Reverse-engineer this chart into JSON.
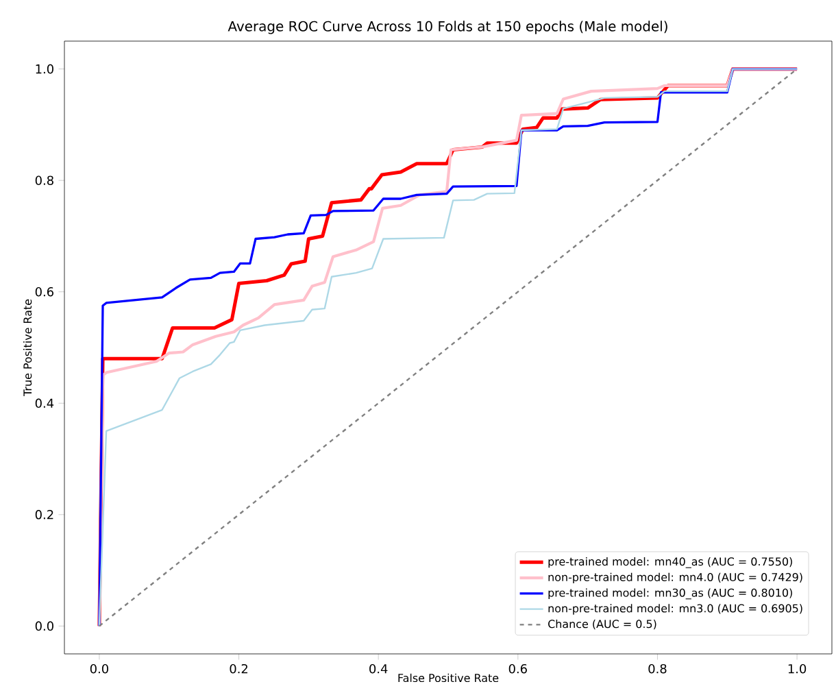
{
  "chart_data": {
    "type": "line",
    "title": "Average ROC Curve Across 10 Folds at 150 epochs (Male model)",
    "xlabel": "False Positive Rate",
    "ylabel": "True Positive Rate",
    "xlim": [
      -0.05,
      1.05
    ],
    "ylim": [
      -0.05,
      1.05
    ],
    "xticks": [
      {
        "value": 0,
        "label": "0.0"
      },
      0.2,
      0.4,
      0.6,
      0.8,
      {
        "value": 1,
        "label": "1.0"
      }
    ],
    "yticks": [
      {
        "value": 0,
        "label": "0.0"
      },
      0.2,
      0.4,
      0.6,
      0.8,
      {
        "value": 1,
        "label": "1.0"
      }
    ],
    "legend": "bottom right",
    "grid": false,
    "series": [
      {
        "name": "pre-trained model: mn40_as (AUC = 0.7550)",
        "color": "#ff0000",
        "x": [
          0,
          0.005,
          0.01,
          0.09,
          0.105,
          0.165,
          0.19,
          0.2,
          0.24,
          0.265,
          0.275,
          0.295,
          0.3,
          0.32,
          0.333,
          0.375,
          0.387,
          0.39,
          0.405,
          0.432,
          0.455,
          0.498,
          0.507,
          0.549,
          0.556,
          0.598,
          0.607,
          0.627,
          0.636,
          0.656,
          0.663,
          0.7,
          0.718,
          0.8,
          0.815,
          0.9,
          0.908,
          1
        ],
        "values": [
          0,
          0.48,
          0.48,
          0.48,
          0.535,
          0.535,
          0.55,
          0.615,
          0.62,
          0.63,
          0.65,
          0.655,
          0.695,
          0.7,
          0.76,
          0.765,
          0.785,
          0.785,
          0.81,
          0.815,
          0.83,
          0.83,
          0.855,
          0.86,
          0.867,
          0.867,
          0.892,
          0.895,
          0.912,
          0.912,
          0.928,
          0.93,
          0.945,
          0.948,
          0.97,
          0.97,
          1,
          1
        ]
      },
      {
        "name": "non-pre-trained model: mn4.0 (AUC = 0.7429)",
        "color": "#ffc0cb",
        "x": [
          0,
          0.005,
          0.01,
          0.082,
          0.1,
          0.12,
          0.134,
          0.167,
          0.193,
          0.206,
          0.228,
          0.251,
          0.293,
          0.305,
          0.323,
          0.335,
          0.368,
          0.393,
          0.406,
          0.432,
          0.459,
          0.498,
          0.504,
          0.549,
          0.598,
          0.605,
          0.656,
          0.665,
          0.705,
          0.8,
          0.81,
          0.9,
          0.908,
          1
        ],
        "values": [
          0,
          0.45,
          0.455,
          0.475,
          0.49,
          0.492,
          0.505,
          0.52,
          0.528,
          0.54,
          0.553,
          0.577,
          0.585,
          0.61,
          0.617,
          0.663,
          0.675,
          0.69,
          0.75,
          0.755,
          0.774,
          0.78,
          0.855,
          0.86,
          0.872,
          0.917,
          0.92,
          0.946,
          0.96,
          0.965,
          0.97,
          0.97,
          1,
          1
        ]
      },
      {
        "name": "pre-trained model: mn30_as (AUC = 0.8010)",
        "color": "#0000ff",
        "x": [
          0,
          0.005,
          0.01,
          0.09,
          0.11,
          0.13,
          0.16,
          0.173,
          0.193,
          0.202,
          0.216,
          0.224,
          0.251,
          0.27,
          0.293,
          0.303,
          0.325,
          0.335,
          0.393,
          0.407,
          0.432,
          0.455,
          0.498,
          0.507,
          0.598,
          0.605,
          0.656,
          0.665,
          0.7,
          0.724,
          0.8,
          0.805,
          0.9,
          0.908,
          1
        ],
        "values": [
          0,
          0.575,
          0.58,
          0.59,
          0.607,
          0.622,
          0.625,
          0.634,
          0.636,
          0.651,
          0.651,
          0.695,
          0.698,
          0.703,
          0.705,
          0.737,
          0.738,
          0.745,
          0.746,
          0.767,
          0.767,
          0.774,
          0.776,
          0.789,
          0.79,
          0.89,
          0.89,
          0.897,
          0.898,
          0.904,
          0.905,
          0.958,
          0.958,
          1,
          1
        ]
      },
      {
        "name": "non-pre-trained model: mn3.0 (AUC = 0.6905)",
        "color": "#add8e6",
        "x": [
          0,
          0.01,
          0.09,
          0.115,
          0.134,
          0.16,
          0.173,
          0.187,
          0.193,
          0.202,
          0.237,
          0.293,
          0.305,
          0.323,
          0.333,
          0.368,
          0.391,
          0.407,
          0.494,
          0.507,
          0.537,
          0.556,
          0.595,
          0.605,
          0.656,
          0.665,
          0.7,
          0.724,
          0.8,
          0.81,
          0.9,
          0.908,
          1
        ],
        "values": [
          0,
          0.35,
          0.388,
          0.445,
          0.457,
          0.47,
          0.487,
          0.508,
          0.51,
          0.531,
          0.54,
          0.548,
          0.568,
          0.57,
          0.627,
          0.634,
          0.642,
          0.695,
          0.697,
          0.764,
          0.765,
          0.776,
          0.777,
          0.89,
          0.892,
          0.929,
          0.94,
          0.948,
          0.95,
          0.96,
          0.96,
          1,
          1
        ]
      },
      {
        "name": "Chance (AUC = 0.5)",
        "color": "#808080",
        "line_style": "dashed",
        "x": [
          0,
          1
        ],
        "values": [
          0,
          1
        ]
      }
    ]
  }
}
